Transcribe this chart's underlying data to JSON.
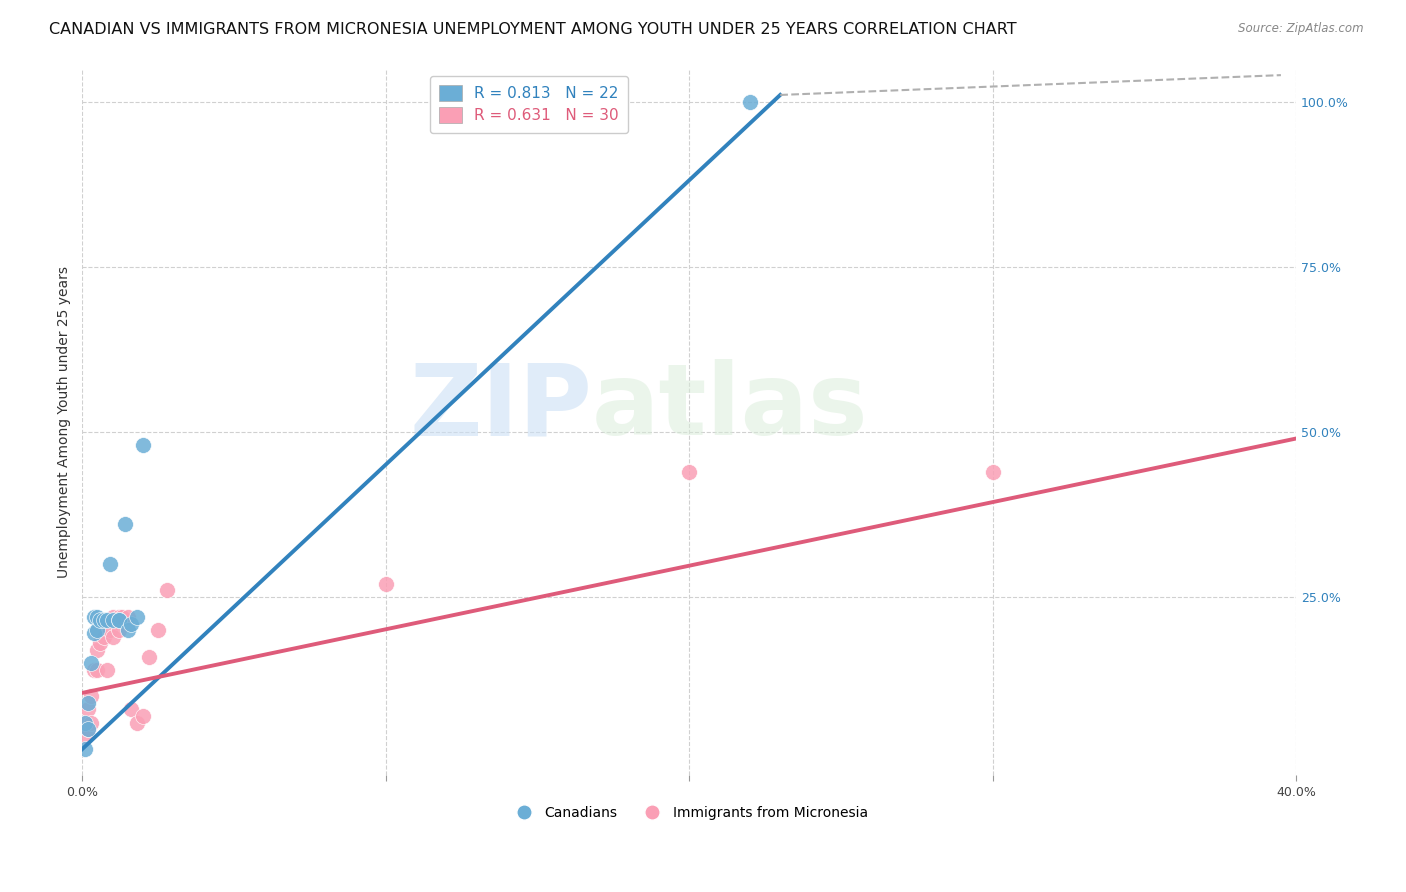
{
  "title": "CANADIAN VS IMMIGRANTS FROM MICRONESIA UNEMPLOYMENT AMONG YOUTH UNDER 25 YEARS CORRELATION CHART",
  "source": "Source: ZipAtlas.com",
  "ylabel_label": "Unemployment Among Youth under 25 years",
  "canadians_label": "Canadians",
  "micronesia_label": "Immigrants from Micronesia",
  "blue_color": "#6baed6",
  "pink_color": "#fa9fb5",
  "blue_line_color": "#3182bd",
  "pink_line_color": "#de5b7a",
  "watermark_zip": "ZIP",
  "watermark_atlas": "atlas",
  "background_color": "#ffffff",
  "grid_color": "#d0d0d0",
  "xlim": [
    0.0,
    0.4
  ],
  "ylim": [
    -0.02,
    1.05
  ],
  "canadians_x": [
    0.001,
    0.001,
    0.002,
    0.002,
    0.003,
    0.004,
    0.004,
    0.005,
    0.005,
    0.006,
    0.007,
    0.008,
    0.009,
    0.01,
    0.012,
    0.012,
    0.014,
    0.015,
    0.016,
    0.018,
    0.02,
    0.22
  ],
  "canadians_y": [
    0.02,
    0.06,
    0.05,
    0.09,
    0.15,
    0.195,
    0.22,
    0.2,
    0.22,
    0.215,
    0.215,
    0.215,
    0.3,
    0.215,
    0.215,
    0.215,
    0.36,
    0.2,
    0.21,
    0.22,
    0.48,
    1.0
  ],
  "micronesia_x": [
    0.001,
    0.001,
    0.002,
    0.002,
    0.003,
    0.003,
    0.004,
    0.005,
    0.005,
    0.006,
    0.007,
    0.008,
    0.009,
    0.01,
    0.01,
    0.012,
    0.012,
    0.013,
    0.015,
    0.016,
    0.018,
    0.02,
    0.022,
    0.025,
    0.028,
    0.1,
    0.2,
    0.3
  ],
  "micronesia_y": [
    0.04,
    0.06,
    0.05,
    0.08,
    0.06,
    0.1,
    0.14,
    0.14,
    0.17,
    0.18,
    0.19,
    0.14,
    0.2,
    0.19,
    0.22,
    0.2,
    0.22,
    0.22,
    0.22,
    0.08,
    0.06,
    0.07,
    0.16,
    0.2,
    0.26,
    0.27,
    0.44,
    0.44
  ],
  "blue_line_x": [
    0.0,
    0.23
  ],
  "blue_line_y": [
    0.02,
    1.01
  ],
  "pink_line_x": [
    0.0,
    0.4
  ],
  "pink_line_y": [
    0.105,
    0.49
  ],
  "dashed_line_x": [
    0.23,
    0.395
  ],
  "dashed_line_y": [
    1.01,
    1.04
  ],
  "marker_size": 130,
  "title_fontsize": 11.5,
  "axis_fontsize": 9,
  "legend_fontsize": 11,
  "right_yticks": [
    1.0,
    0.75,
    0.5,
    0.25
  ],
  "right_yticklabels": [
    "100.0%",
    "75.0%",
    "50.0%",
    "25.0%"
  ],
  "xticks": [
    0.0,
    0.1,
    0.2,
    0.3,
    0.4
  ],
  "xticklabels": [
    "0.0%",
    "",
    "",
    "",
    "40.0%"
  ]
}
